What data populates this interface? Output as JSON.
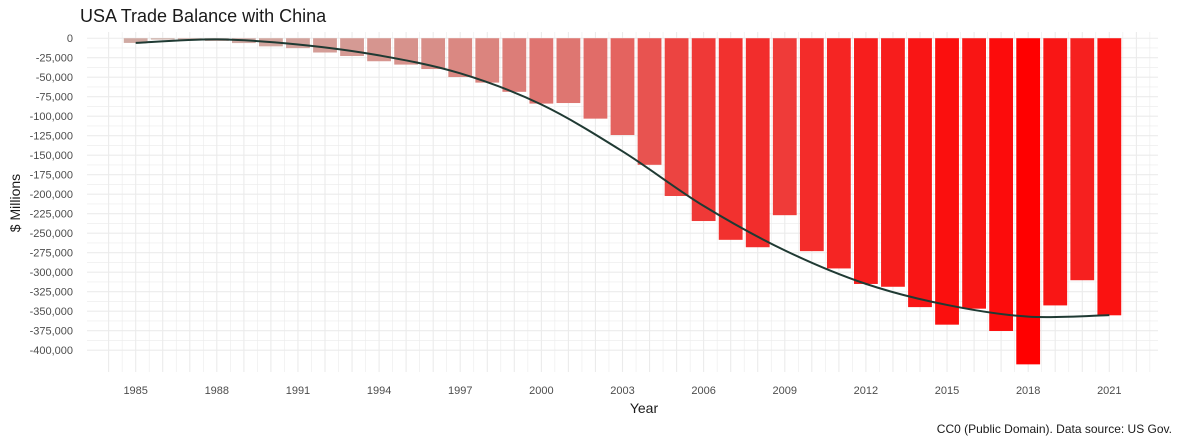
{
  "chart_data": {
    "type": "bar",
    "title": "USA Trade Balance with China",
    "xlabel": "Year",
    "ylabel": "$ Millions",
    "caption": "CC0 (Public Domain). Data source: US Gov.",
    "x": [
      1985,
      1986,
      1987,
      1988,
      1989,
      1990,
      1991,
      1992,
      1993,
      1994,
      1995,
      1996,
      1997,
      1998,
      1999,
      2000,
      2001,
      2002,
      2003,
      2004,
      2005,
      2006,
      2007,
      2008,
      2009,
      2010,
      2011,
      2012,
      2013,
      2014,
      2015,
      2016,
      2017,
      2018,
      2019,
      2020,
      2021
    ],
    "values": [
      -6000,
      -1700,
      -2800,
      -3500,
      -6200,
      -10400,
      -12700,
      -18300,
      -22800,
      -29500,
      -33800,
      -39500,
      -49700,
      -56900,
      -68700,
      -83800,
      -83100,
      -103100,
      -124100,
      -162300,
      -202300,
      -234400,
      -258500,
      -268000,
      -226900,
      -273000,
      -295200,
      -315100,
      -318700,
      -344800,
      -367300,
      -346800,
      -375400,
      -418200,
      -342600,
      -310300,
      -355300
    ],
    "trend": {
      "x": [
        1985,
        1988,
        1991,
        1994,
        1997,
        2000,
        2003,
        2006,
        2009,
        2012,
        2015,
        2018,
        2021
      ],
      "y": [
        -6000,
        -1500,
        -8000,
        -22000,
        -45000,
        -85000,
        -145000,
        -215000,
        -272000,
        -315000,
        -342000,
        -357000,
        -355000
      ]
    },
    "x_ticks": [
      1985,
      1988,
      1991,
      1994,
      1997,
      2000,
      2003,
      2006,
      2009,
      2012,
      2015,
      2018,
      2021
    ],
    "y_ticks": [
      0,
      -25000,
      -50000,
      -75000,
      -100000,
      -125000,
      -150000,
      -175000,
      -200000,
      -225000,
      -250000,
      -275000,
      -300000,
      -325000,
      -350000,
      -375000,
      -400000
    ],
    "y_tick_labels": [
      "0",
      "-25,000",
      "-50,000",
      "-75,000",
      "-100,000",
      "-125,000",
      "-150,000",
      "-175,000",
      "-200,000",
      "-225,000",
      "-250,000",
      "-275,000",
      "-300,000",
      "-325,000",
      "-350,000",
      "-375,000",
      "-400,000"
    ],
    "ylim": [
      -418200,
      0
    ],
    "xlim": [
      1984.5,
      2021.5
    ],
    "grid": true,
    "legend": "none",
    "colors": {
      "low": "#cdb5ae",
      "high": "#ff0000",
      "trend": "#1f3a33",
      "grid": "#ebebeb"
    }
  }
}
